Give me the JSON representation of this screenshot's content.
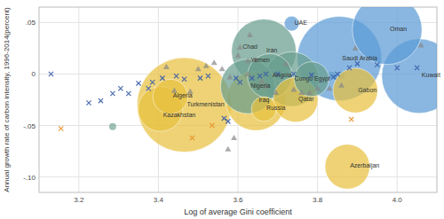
{
  "chart_data": {
    "type": "scatter",
    "xlabel": "Log of average Gini coefficient",
    "ylabel": "Annual growth rate of carbon intensity, 1996-2014(percent)",
    "xlim": [
      3.1,
      4.1
    ],
    "ylim": [
      -0.115,
      0.065
    ],
    "xticks": [
      3.2,
      3.4,
      3.6,
      3.8,
      {
        "value": 4.0,
        "label": "4.0"
      }
    ],
    "yticks": [
      {
        "value": -0.1,
        "label": "-.10"
      },
      {
        "value": -0.05,
        "label": "-.05"
      },
      0,
      {
        "value": 0.05,
        "label": ".05"
      }
    ],
    "grid": true,
    "series": [
      {
        "type": "scatter",
        "marker": "circle",
        "color": "#6A9E8F",
        "x": [
          3.285,
          3.835,
          3.86
        ],
        "values": [
          -0.051,
          -0.001,
          -0.001
        ]
      },
      {
        "type": "scatter",
        "marker": "square",
        "color": "#5B9BD5",
        "x": [
          3.435,
          3.845
        ],
        "values": [
          -0.025,
          -0.003
        ]
      },
      {
        "type": "bubble",
        "marker": "circle",
        "labels": [
          "Turkmenistan",
          "Saudi Arabia",
          "Kuwait",
          "Oman",
          "Iran",
          "Iraq",
          "Congo",
          "Nigeria",
          "Angola",
          "Qatar",
          "Gabon",
          "Kazakhstan",
          "Azerbaijan",
          "Egypt",
          "Algeria",
          "Russia",
          "UAE"
        ],
        "x": [
          3.465,
          3.855,
          4.055,
          3.975,
          3.665,
          3.645,
          3.735,
          3.625,
          3.68,
          3.745,
          3.895,
          3.405,
          3.875,
          3.785,
          3.43,
          3.665,
          3.735
        ],
        "values": [
          -0.03,
          0.015,
          -0.002,
          0.043,
          0.022,
          -0.026,
          -0.005,
          -0.012,
          -0.002,
          -0.025,
          -0.016,
          -0.034,
          -0.09,
          -0.005,
          -0.022,
          -0.034,
          0.049
        ],
        "sizes": [
          38,
          34,
          30,
          28,
          26,
          24,
          22,
          22,
          18,
          18,
          18,
          18,
          18,
          14,
          14,
          10,
          6
        ],
        "colors": [
          "#E8C040",
          "#5B9BD5",
          "#5B9BD5",
          "#5B9BD5",
          "#6A9E8F",
          "#E8C040",
          "#6A9E8F",
          "#6A9E8F",
          "#6A9E8F",
          "#E8C040",
          "#E8C040",
          "#E8C040",
          "#E8C040",
          "#6A9E8F",
          "#E8C040",
          "#E8C040",
          "#5B9BD5"
        ]
      },
      {
        "type": "scatter",
        "marker": "x",
        "color": "#3A5CA8",
        "x": [
          3.13,
          3.225,
          3.255,
          3.285,
          3.305,
          3.325,
          3.35,
          3.375,
          3.385,
          3.41,
          3.445,
          3.465,
          3.505,
          3.525,
          3.565,
          3.575,
          3.595,
          3.605,
          3.635,
          3.655,
          3.67,
          3.7,
          3.74,
          3.785,
          3.85,
          3.9,
          3.95,
          4.0,
          3.84,
          3.88,
          4.05
        ],
        "values": [
          0.0,
          -0.028,
          -0.026,
          -0.019,
          -0.014,
          -0.019,
          -0.009,
          -0.014,
          -0.008,
          -0.004,
          -0.002,
          -0.005,
          -0.004,
          -0.002,
          -0.043,
          -0.046,
          -0.004,
          -0.008,
          -0.004,
          -0.002,
          0.0,
          0.0,
          0.0,
          -0.001,
          0.0,
          0.01,
          0.009,
          0.006,
          -0.003,
          0.006,
          0.006
        ]
      },
      {
        "type": "scatter",
        "marker": "x",
        "color": "#E8902A",
        "x": [
          3.155,
          3.485,
          3.535,
          3.885
        ],
        "values": [
          -0.053,
          -0.062,
          -0.05,
          -0.044
        ]
      },
      {
        "type": "scatter",
        "marker": "triangle",
        "color": "#888888",
        "labels": [
          "Chad",
          "Yemen",
          null,
          null,
          null,
          null,
          null,
          null,
          null,
          null,
          null,
          null,
          null,
          null,
          null,
          null,
          null,
          null,
          null,
          null,
          null,
          null,
          null,
          null,
          null,
          null,
          null,
          null
        ],
        "x": [
          3.605,
          3.625,
          3.63,
          3.42,
          3.44,
          3.48,
          3.5,
          3.52,
          3.54,
          3.56,
          3.58,
          3.6,
          3.625,
          3.645,
          3.66,
          3.67,
          3.695,
          3.72,
          3.74,
          3.76,
          3.78,
          3.8,
          3.83,
          3.86,
          3.895,
          3.575,
          3.59,
          4.06
        ],
        "values": [
          0.026,
          0.013,
          0.038,
          0.007,
          -0.016,
          -0.017,
          0.005,
          0.008,
          0.011,
          0.005,
          -0.003,
          0.018,
          0.0,
          0.014,
          -0.007,
          -0.012,
          -0.018,
          0.01,
          -0.015,
          -0.018,
          -0.018,
          -0.014,
          -0.014,
          -0.011,
          0.025,
          -0.073,
          -0.062,
          0.028
        ]
      }
    ]
  }
}
